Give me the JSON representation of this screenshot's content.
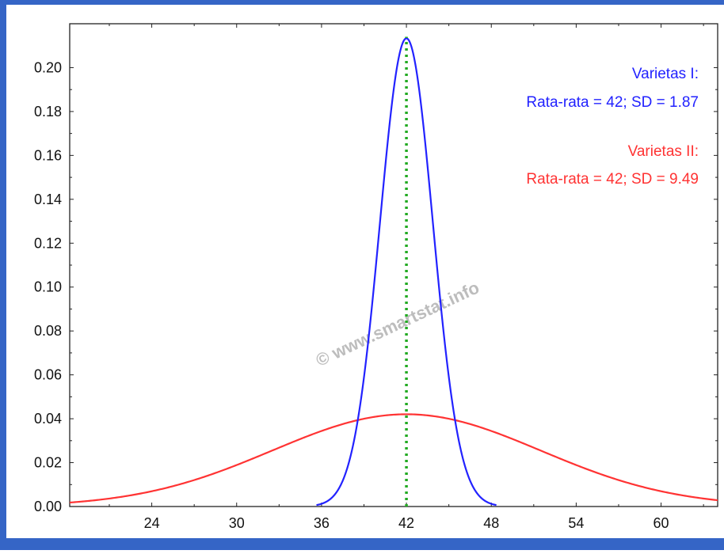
{
  "chart_data": {
    "type": "line",
    "xlim": [
      18.2,
      64
    ],
    "ylim": [
      0,
      0.22
    ],
    "x_ticks": [
      24,
      30,
      36,
      42,
      48,
      54,
      60
    ],
    "x_tick_labels": [
      "24",
      "30",
      "36",
      "42",
      "48",
      "54",
      "60"
    ],
    "y_ticks": [
      0,
      0.02,
      0.04,
      0.06,
      0.08,
      0.1,
      0.12,
      0.14,
      0.16,
      0.18,
      0.2
    ],
    "y_tick_labels": [
      "0.00",
      "0.02",
      "0.04",
      "0.06",
      "0.08",
      "0.10",
      "0.12",
      "0.14",
      "0.16",
      "0.18",
      "0.20"
    ],
    "grid": false,
    "series": [
      {
        "name": "Varietas I:",
        "distribution": "normal",
        "mean": 42,
        "sd": 1.87,
        "color": "#2222ff"
      },
      {
        "name": "Varietas II:",
        "distribution": "normal",
        "mean": 42,
        "sd": 9.49,
        "color": "#ff3333"
      }
    ],
    "reference_line": {
      "x": 42,
      "style": "dotted",
      "color": "#22aa22"
    },
    "annotations": [
      {
        "series": "Varietas I:",
        "title": "Varietas I:",
        "text": "Rata-rata = 42; SD = 1.87",
        "color": "#2222ff"
      },
      {
        "series": "Varietas II:",
        "title": "Varietas II:",
        "text": "Rata-rata = 42; SD = 9.49",
        "color": "#ff3333"
      }
    ],
    "watermark": "© www.smartstat.info"
  },
  "colors": {
    "border": "#3565c6",
    "axis": "#222222",
    "watermark": "#bdbdbd"
  }
}
